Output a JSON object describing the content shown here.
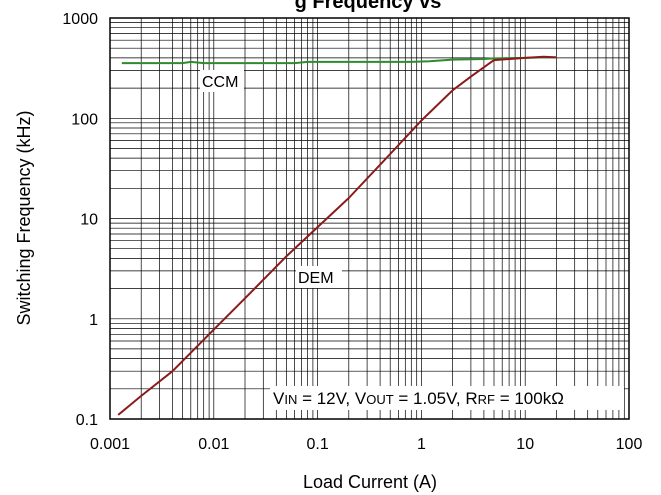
{
  "chart_data": {
    "type": "line",
    "title_fragment": "g Frequency vs",
    "xlabel": "Load Current (A)",
    "ylabel": "Switching Frequency (kHz)",
    "x_scale": "log",
    "y_scale": "log",
    "xlim": [
      0.001,
      100
    ],
    "ylim": [
      0.1,
      1000
    ],
    "x_ticks": [
      "0.001",
      "0.01",
      "0.1",
      "1",
      "10",
      "100"
    ],
    "y_ticks": [
      "0.1",
      "1",
      "10",
      "100",
      "1000"
    ],
    "grid": true,
    "series": [
      {
        "name": "CCM",
        "color": "#2e8b2e",
        "x": [
          0.0013,
          0.005,
          0.006,
          0.008,
          0.02,
          0.06,
          0.08,
          0.2,
          0.8,
          1.2,
          2,
          4,
          5,
          10,
          15,
          20
        ],
        "y": [
          355,
          355,
          365,
          355,
          355,
          355,
          365,
          365,
          365,
          370,
          385,
          390,
          395,
          400,
          405,
          405
        ]
      },
      {
        "name": "DEM",
        "color": "#8b1a1a",
        "x": [
          0.0012,
          0.002,
          0.004,
          0.01,
          0.02,
          0.05,
          0.1,
          0.2,
          0.5,
          1,
          2,
          3,
          5,
          10,
          15,
          20
        ],
        "y": [
          0.11,
          0.17,
          0.3,
          0.78,
          1.6,
          4.2,
          8.2,
          16,
          44,
          95,
          190,
          260,
          380,
          400,
          410,
          405
        ]
      }
    ],
    "annotations": {
      "ccm": "CCM",
      "dem": "DEM",
      "conditions": {
        "vin_v": "V",
        "vin_sub": "IN",
        "vin_val": " = 12V, ",
        "vout_v": "V",
        "vout_sub": "OUT",
        "vout_val": " = 1.05V, ",
        "rrf_r": "R",
        "rrf_sub": "RF",
        "rrf_val": " = 100kΩ"
      }
    }
  }
}
